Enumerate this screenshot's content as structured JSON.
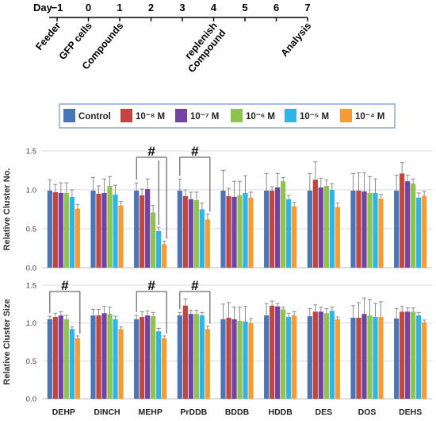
{
  "timeline": {
    "day_label": "Day",
    "days": [
      "−1",
      "0",
      "1",
      "2",
      "3",
      "4",
      "5",
      "6",
      "7"
    ],
    "events": [
      {
        "day_index": 0,
        "label": "Feeder",
        "lines": [
          "Feeder"
        ]
      },
      {
        "day_index": 1,
        "label": "GFP cells",
        "lines": [
          "GFP cells"
        ]
      },
      {
        "day_index": 2,
        "label": "Compounds",
        "lines": [
          "Compounds"
        ]
      },
      {
        "day_index": 5,
        "label": "Compound replenish",
        "lines": [
          "Compound",
          "replenish"
        ]
      },
      {
        "day_index": 8,
        "label": "Analysis",
        "lines": [
          "Analysis"
        ]
      }
    ]
  },
  "legend": [
    {
      "label": "Control",
      "color": "#4a76b9"
    },
    {
      "label": "10⁻⁸ M",
      "color": "#c0463f"
    },
    {
      "label": "10⁻⁷ M",
      "color": "#7143a3"
    },
    {
      "label": "10⁻⁶ M",
      "color": "#8dc34e"
    },
    {
      "label": "10⁻⁵ M",
      "color": "#2fb4e6"
    },
    {
      "label": "10⁻⁴ M",
      "color": "#f79b32"
    }
  ],
  "chart_data": [
    {
      "type": "bar",
      "ylabel": "Relative Cluster No.",
      "ylim": [
        0,
        1.5
      ],
      "yticks": [
        "0.0",
        "0.5",
        "1.0",
        "1.5"
      ],
      "grid": true,
      "categories": [
        "DEHP",
        "DINCH",
        "MEHP",
        "PrDDB",
        "BDDB",
        "HDDB",
        "DES",
        "DOS",
        "DEHS"
      ],
      "series": [
        {
          "name": "Control",
          "values": [
            0.99,
            0.99,
            0.99,
            0.99,
            0.99,
            0.99,
            0.99,
            0.99,
            0.99
          ],
          "errors": [
            0.14,
            0.17,
            0.1,
            0.15,
            0.26,
            0.22,
            0.22,
            0.22,
            0.2
          ]
        },
        {
          "name": "10⁻⁸ M",
          "values": [
            0.97,
            0.95,
            0.93,
            0.92,
            0.92,
            0.99,
            1.13,
            0.99,
            1.21
          ],
          "errors": [
            0.1,
            0.1,
            0.08,
            0.08,
            0.1,
            0.05,
            0.23,
            0.23,
            0.14
          ]
        },
        {
          "name": "10⁻⁷ M",
          "values": [
            0.96,
            0.96,
            1.01,
            0.88,
            0.91,
            1.03,
            1.03,
            0.98,
            1.11
          ],
          "errors": [
            0.13,
            0.18,
            0.13,
            0.09,
            0.2,
            0.18,
            0.12,
            0.24,
            0.08
          ]
        },
        {
          "name": "10⁻⁶ M",
          "values": [
            0.96,
            1.05,
            0.71,
            0.87,
            0.93,
            1.11,
            1.05,
            0.96,
            1.08
          ],
          "errors": [
            0.13,
            0.12,
            0.09,
            0.1,
            0.18,
            0.05,
            0.08,
            0.21,
            0.06
          ]
        },
        {
          "name": "10⁻⁵ M",
          "values": [
            0.91,
            0.94,
            0.47,
            0.75,
            0.96,
            0.88,
            1.0,
            0.96,
            0.9
          ],
          "errors": [
            0.09,
            0.12,
            0.05,
            0.08,
            0.22,
            0.05,
            0.08,
            0.18,
            0.06
          ]
        },
        {
          "name": "10⁻⁴ M",
          "values": [
            0.76,
            0.8,
            0.3,
            0.62,
            0.9,
            0.79,
            0.78,
            0.89,
            0.92
          ],
          "errors": [
            0.05,
            0.05,
            0.04,
            0.07,
            0.07,
            0.05,
            0.05,
            0.05,
            0.06
          ]
        }
      ],
      "annotations": [
        {
          "text": "#",
          "category": "MEHP",
          "from_series": 0,
          "to_series": [
            4,
            5
          ]
        },
        {
          "text": "#",
          "category": "PrDDB",
          "from_series": 0,
          "to_series": [
            5
          ]
        }
      ]
    },
    {
      "type": "bar",
      "ylabel": "Relative Cluster Size",
      "ylim": [
        0,
        1.5
      ],
      "yticks": [
        "0.0",
        "0.5",
        "1.0",
        "1.5"
      ],
      "grid": true,
      "categories": [
        "DEHP",
        "DINCH",
        "MEHP",
        "PrDDB",
        "BDDB",
        "HDDB",
        "DES",
        "DOS",
        "DEHS"
      ],
      "series": [
        {
          "name": "Control",
          "values": [
            1.05,
            1.1,
            1.05,
            1.1,
            1.05,
            1.1,
            1.09,
            1.07,
            1.06
          ],
          "errors": [
            0.04,
            0.08,
            0.05,
            0.04,
            0.2,
            0.16,
            0.1,
            0.16,
            0.13
          ]
        },
        {
          "name": "10⁻⁸ M",
          "values": [
            1.08,
            1.1,
            1.08,
            1.23,
            1.07,
            1.23,
            1.15,
            1.07,
            1.15
          ],
          "errors": [
            0.05,
            0.08,
            0.07,
            0.09,
            0.2,
            0.06,
            0.09,
            0.2,
            0.07
          ]
        },
        {
          "name": "10⁻⁷ M",
          "values": [
            1.1,
            1.13,
            1.1,
            1.12,
            1.05,
            1.22,
            1.15,
            1.12,
            1.15
          ],
          "errors": [
            0.05,
            0.09,
            0.06,
            0.05,
            0.16,
            0.04,
            0.06,
            0.21,
            0.05
          ]
        },
        {
          "name": "10⁻⁶ M",
          "values": [
            1.05,
            1.12,
            1.09,
            1.12,
            1.03,
            1.18,
            1.13,
            1.1,
            1.15
          ],
          "errors": [
            0.05,
            0.09,
            0.05,
            0.05,
            0.18,
            0.03,
            0.06,
            0.21,
            0.05
          ]
        },
        {
          "name": "10⁻⁵ M",
          "values": [
            0.92,
            1.05,
            0.89,
            1.1,
            1.02,
            1.08,
            1.16,
            1.08,
            1.1
          ],
          "errors": [
            0.03,
            0.04,
            0.04,
            0.04,
            0.2,
            0.05,
            0.05,
            0.18,
            0.04
          ]
        },
        {
          "name": "10⁻⁴ M",
          "values": [
            0.8,
            0.92,
            0.8,
            0.92,
            1.0,
            1.1,
            1.05,
            1.08,
            1.01
          ],
          "errors": [
            0.03,
            0.03,
            0.03,
            0.04,
            0.06,
            0.05,
            0.03,
            0.2,
            0.03
          ]
        }
      ],
      "annotations": [
        {
          "text": "#",
          "category": "DEHP",
          "from_series": 0,
          "to_series": [
            5
          ]
        },
        {
          "text": "#",
          "category": "MEHP",
          "from_series": 0,
          "to_series": [
            5
          ]
        },
        {
          "text": "#",
          "category": "PrDDB",
          "from_series": 0,
          "to_series": [
            5
          ]
        }
      ]
    }
  ]
}
